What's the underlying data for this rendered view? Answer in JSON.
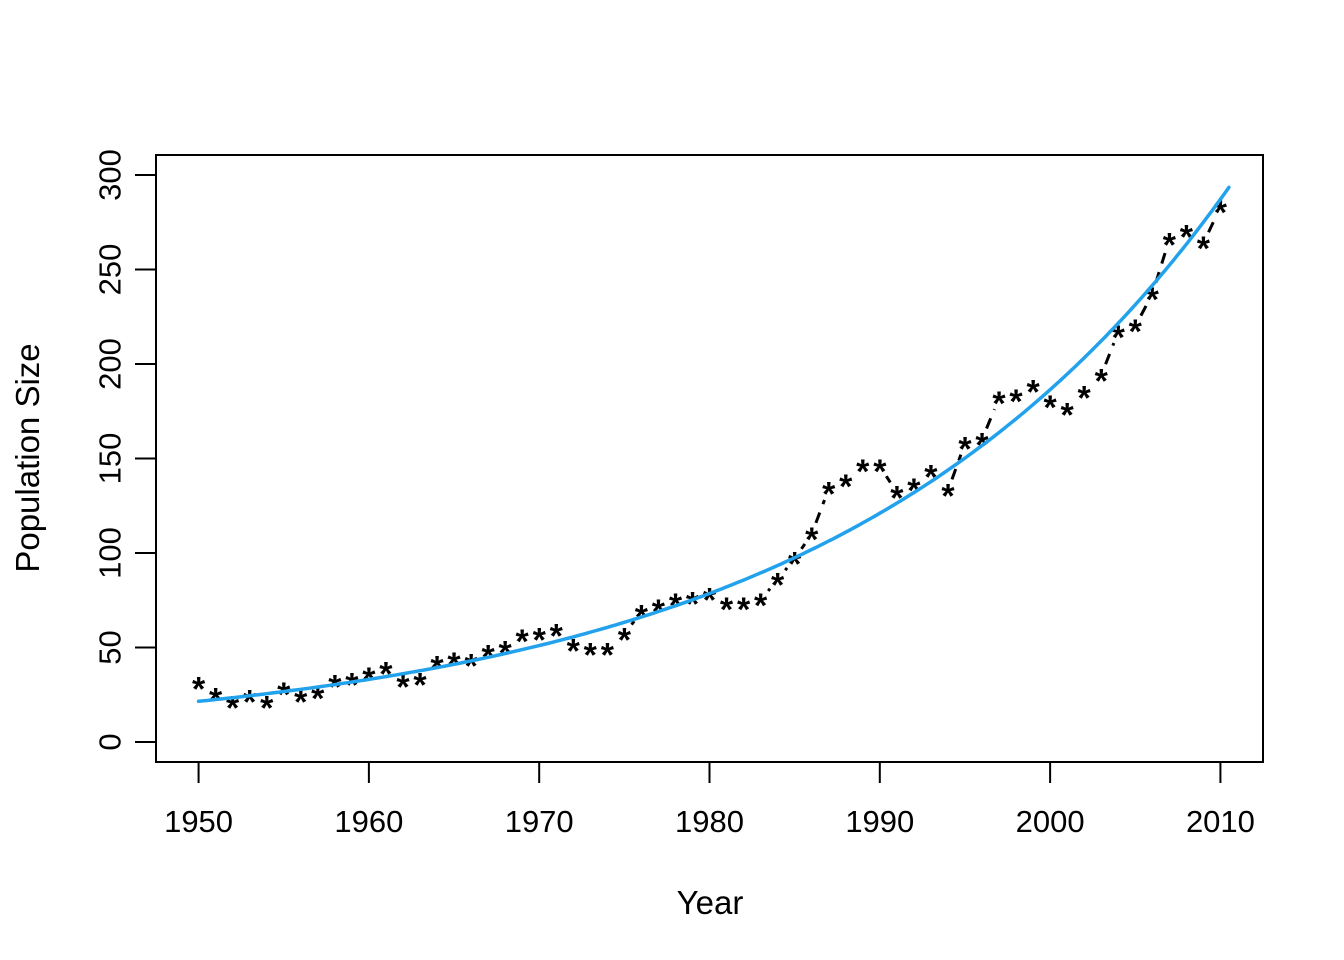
{
  "page": {
    "background": "#ffffff"
  },
  "chart_data": {
    "type": "scatter",
    "title": "",
    "xlabel": "Year",
    "ylabel": "Population Size",
    "x_ticks": [
      1950,
      1960,
      1970,
      1980,
      1990,
      2000,
      2010
    ],
    "y_ticks": [
      0,
      50,
      100,
      150,
      200,
      250,
      300
    ],
    "xlim": [
      1947.5,
      2012.5
    ],
    "ylim": [
      -10.6,
      310.6
    ],
    "grid": false,
    "legend": "none",
    "marker": "*",
    "marker_color": "#000000",
    "connector_style": "dashed",
    "connector_color": "#000000",
    "fit_curve": {
      "type": "exponential",
      "n0": 21.5,
      "rate_per_year": 0.0432,
      "x_start": 1950,
      "x_end": 2010.5,
      "color": "#22A2EC"
    },
    "x": [
      1950,
      1951,
      1952,
      1953,
      1954,
      1955,
      1956,
      1957,
      1958,
      1959,
      1960,
      1961,
      1962,
      1963,
      1964,
      1965,
      1966,
      1967,
      1968,
      1969,
      1970,
      1971,
      1972,
      1973,
      1974,
      1975,
      1976,
      1977,
      1978,
      1979,
      1980,
      1981,
      1982,
      1983,
      1984,
      1985,
      1986,
      1987,
      1988,
      1989,
      1990,
      1991,
      1992,
      1993,
      1994,
      1995,
      1996,
      1997,
      1998,
      1999,
      2000,
      2001,
      2002,
      2003,
      2004,
      2005,
      2006,
      2007,
      2008,
      2009,
      2010
    ],
    "y": [
      31,
      25,
      21,
      24,
      21,
      28,
      24,
      26,
      32,
      33,
      36,
      39,
      32,
      33,
      42,
      44,
      43,
      48,
      50,
      56,
      57,
      59,
      51,
      49,
      49,
      57,
      69,
      72,
      75,
      76,
      78,
      73,
      73,
      75,
      86,
      97,
      110,
      134,
      138,
      146,
      146,
      132,
      136,
      143,
      133,
      158,
      160,
      182,
      183,
      188,
      180,
      176,
      185,
      194,
      217,
      220,
      237,
      266,
      270,
      264,
      283
    ]
  }
}
